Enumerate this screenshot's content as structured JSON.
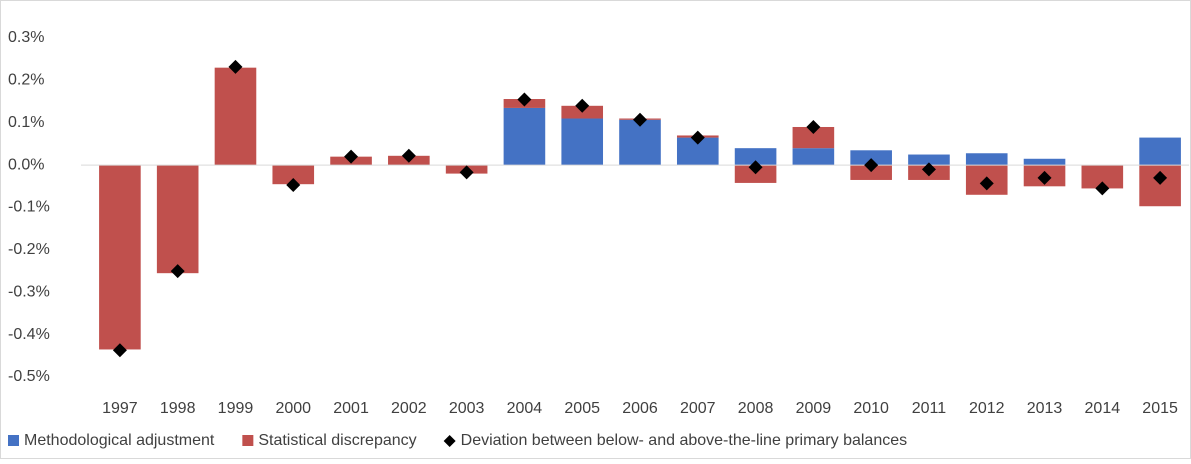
{
  "chart_data": {
    "type": "bar",
    "categories": [
      "1997",
      "1998",
      "1999",
      "2000",
      "2001",
      "2002",
      "2003",
      "2004",
      "2005",
      "2006",
      "2007",
      "2008",
      "2009",
      "2010",
      "2011",
      "2012",
      "2013",
      "2014",
      "2015"
    ],
    "series": [
      {
        "name": "Methodological adjustment",
        "color": "#4472c4",
        "kind": "bar",
        "values": [
          0,
          0,
          0,
          0,
          0,
          0,
          0,
          0.135,
          0.11,
          0.107,
          0.065,
          0.04,
          0.04,
          0.035,
          0.025,
          0.028,
          0.015,
          0,
          0.065
        ]
      },
      {
        "name": "Statistical discrepancy",
        "color": "#c0504d",
        "kind": "bar",
        "values": [
          -0.435,
          -0.255,
          0.23,
          -0.045,
          0.02,
          0.022,
          -0.02,
          0.021,
          0.03,
          0.003,
          0.005,
          -0.042,
          0.05,
          -0.035,
          -0.035,
          -0.07,
          -0.05,
          -0.055,
          -0.097
        ]
      },
      {
        "name": "Deviation between below- and above-the-line primary balances",
        "color": "#000000",
        "kind": "scatter",
        "values": [
          -0.437,
          -0.25,
          0.232,
          -0.047,
          0.02,
          0.022,
          -0.017,
          0.155,
          0.14,
          0.107,
          0.065,
          -0.005,
          0.09,
          0.0,
          -0.01,
          -0.043,
          -0.03,
          -0.055,
          -0.03
        ]
      }
    ],
    "stacked": true,
    "ylim": [
      -0.5,
      0.3
    ],
    "yticks": [
      {
        "value": 0.3,
        "label": "0.3%"
      },
      {
        "value": 0.2,
        "label": "0.2%"
      },
      {
        "value": 0.1,
        "label": "0.1%"
      },
      {
        "value": 0.0,
        "label": "0.0%"
      },
      {
        "value": -0.1,
        "label": "-0.1%"
      },
      {
        "value": -0.2,
        "label": "-0.2%"
      },
      {
        "value": -0.3,
        "label": "-0.3%"
      },
      {
        "value": -0.4,
        "label": "-0.4%"
      },
      {
        "value": -0.5,
        "label": "-0.5%"
      }
    ],
    "grid": false,
    "legend": "bottom"
  }
}
